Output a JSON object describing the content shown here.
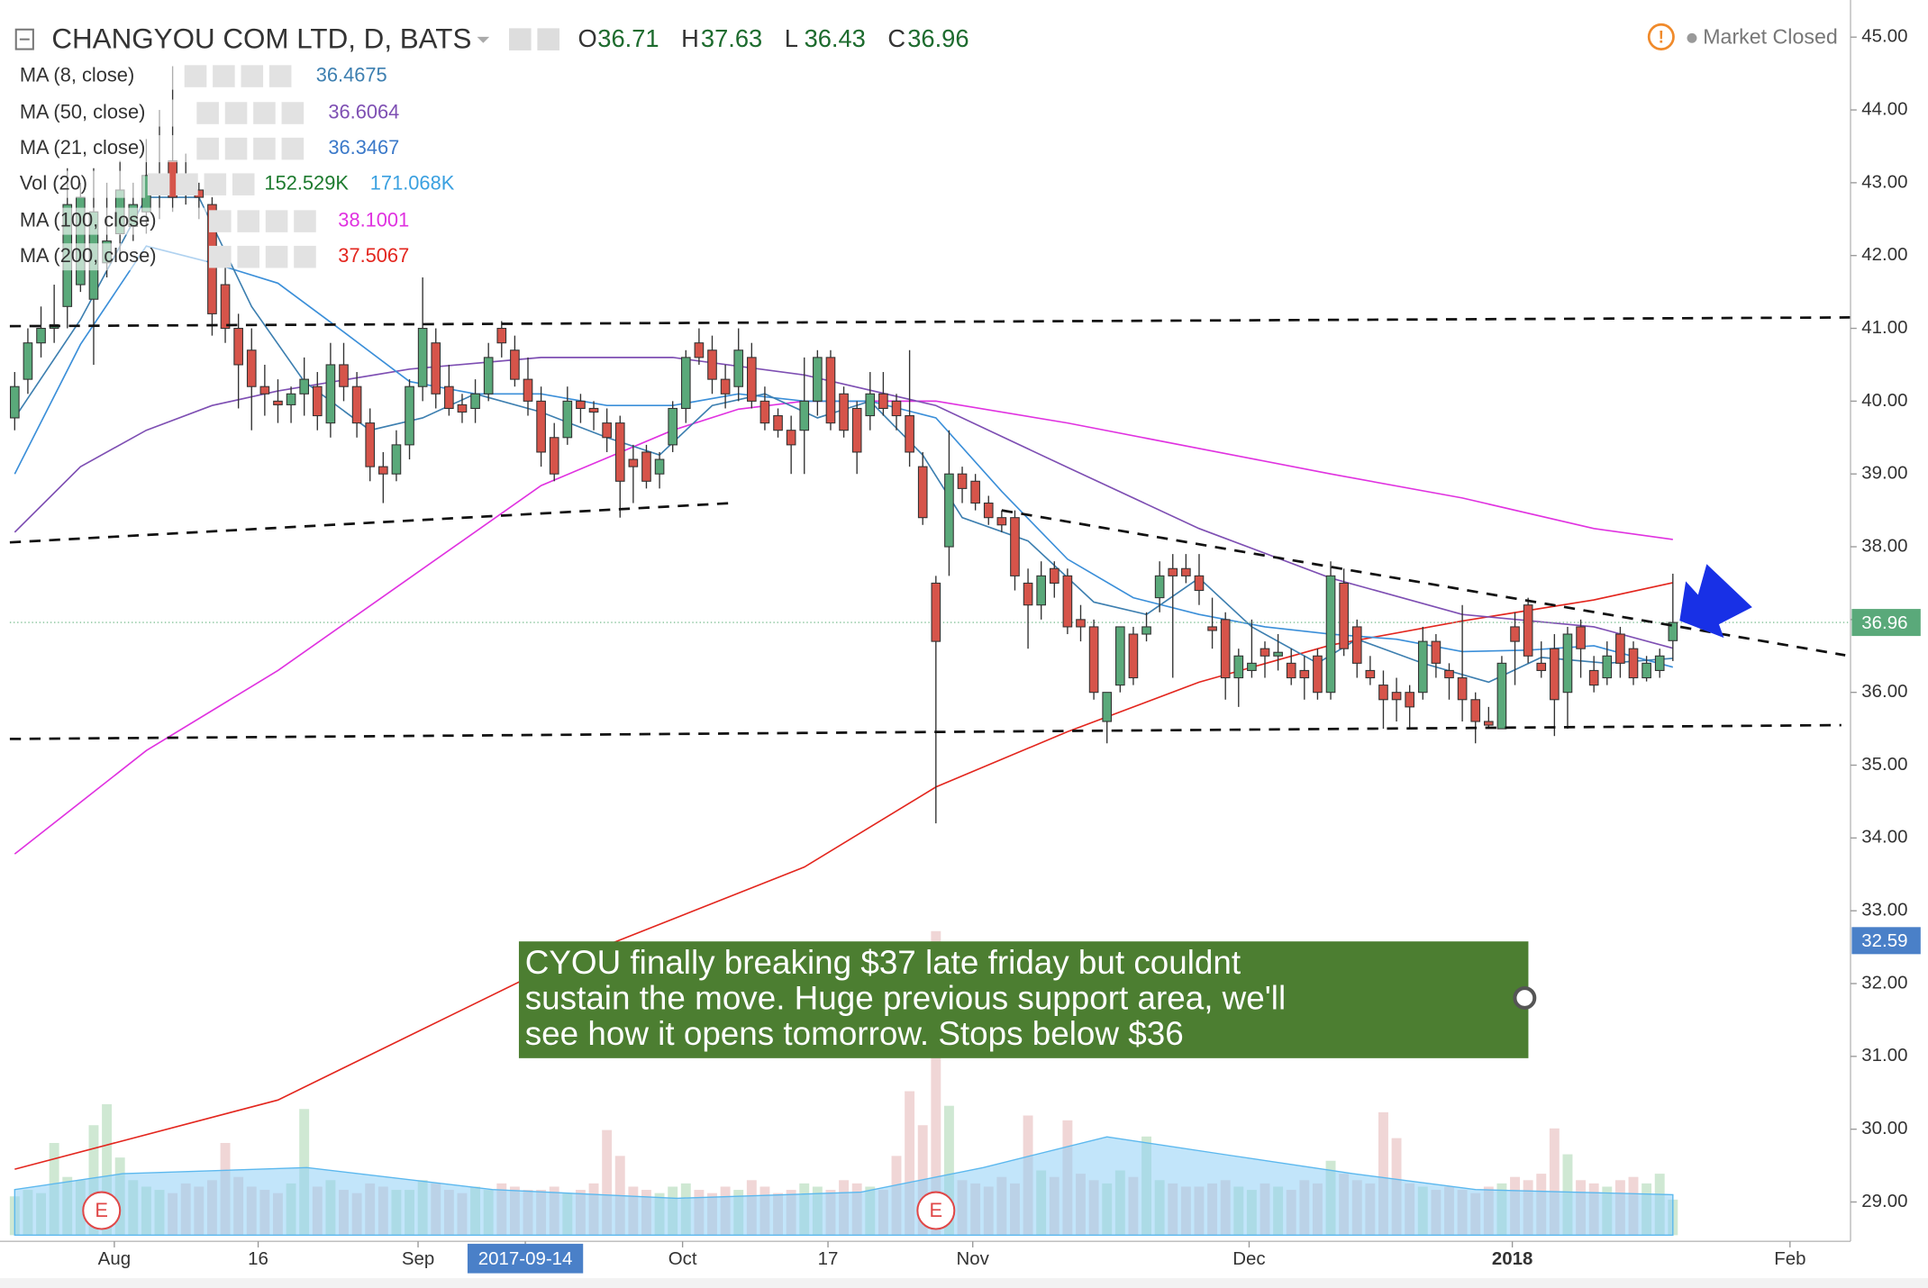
{
  "header": {
    "title": "CHANGYOU COM LTD, D, BATS",
    "ohlc": [
      {
        "label": "O",
        "value": 36.71
      },
      {
        "label": "H",
        "value": 37.63
      },
      {
        "label": "L",
        "value": 36.43
      },
      {
        "label": "C",
        "value": 36.96
      }
    ],
    "status": "Market Closed"
  },
  "legend": [
    {
      "name": "MA (8, close)",
      "values": [
        36.4675
      ],
      "colors": [
        "#3d7fb0"
      ]
    },
    {
      "name": "MA (50, close)",
      "values": [
        36.6064
      ],
      "colors": [
        "#7e4fb3"
      ]
    },
    {
      "name": "MA (21, close)",
      "values": [
        36.3467
      ],
      "colors": [
        "#3b79c9"
      ]
    },
    {
      "name": "Vol (20)",
      "values": [
        "152.529K",
        "171.068K"
      ],
      "colors": [
        "#1d7a2e",
        "#3aa0e0"
      ]
    },
    {
      "name": "MA (100, close)",
      "values": [
        38.1001
      ],
      "colors": [
        "#e032e0"
      ]
    },
    {
      "name": "MA (200, close)",
      "values": [
        37.5067
      ],
      "colors": [
        "#e3261e"
      ]
    }
  ],
  "chart_data": {
    "type": "candlestick",
    "up_color": "#5aa97a",
    "down_color": "#d6544a",
    "candles": [
      [
        39.77,
        40.4,
        39.6,
        40.2
      ],
      [
        40.3,
        41.0,
        40.1,
        40.8
      ],
      [
        40.8,
        41.3,
        40.6,
        41.0
      ],
      [
        41.0,
        41.6,
        40.8,
        41.05
      ],
      [
        41.3,
        43.2,
        41.0,
        42.7
      ],
      [
        41.6,
        43.0,
        41.5,
        42.8
      ],
      [
        41.4,
        43.2,
        40.5,
        42.6
      ],
      [
        41.9,
        43.0,
        41.7,
        42.2
      ],
      [
        42.3,
        43.3,
        42.0,
        42.9
      ],
      [
        42.4,
        43.0,
        42.2,
        42.7
      ],
      [
        42.6,
        43.6,
        42.3,
        43.1
      ],
      [
        42.9,
        44.0,
        42.5,
        43.0
      ],
      [
        43.3,
        44.6,
        42.6,
        42.8
      ],
      [
        43.0,
        43.4,
        42.7,
        42.9
      ],
      [
        42.9,
        43.0,
        42.5,
        42.8
      ],
      [
        42.7,
        42.8,
        40.9,
        41.2
      ],
      [
        41.6,
        41.9,
        40.8,
        41.0
      ],
      [
        41.0,
        41.2,
        39.9,
        40.5
      ],
      [
        40.7,
        41.0,
        39.6,
        40.2
      ],
      [
        40.2,
        40.5,
        39.8,
        40.1
      ],
      [
        40.0,
        40.3,
        39.7,
        39.95
      ],
      [
        39.95,
        40.2,
        39.7,
        40.1
      ],
      [
        40.1,
        40.6,
        39.8,
        40.3
      ],
      [
        40.2,
        40.4,
        39.6,
        39.8
      ],
      [
        39.7,
        40.8,
        39.5,
        40.5
      ],
      [
        40.5,
        40.8,
        40.0,
        40.2
      ],
      [
        40.2,
        40.4,
        39.5,
        39.7
      ],
      [
        39.7,
        39.9,
        38.9,
        39.1
      ],
      [
        39.1,
        39.3,
        38.6,
        39.0
      ],
      [
        39.0,
        39.6,
        38.9,
        39.4
      ],
      [
        39.4,
        40.3,
        39.2,
        40.2
      ],
      [
        40.2,
        41.7,
        40.0,
        41.0
      ],
      [
        40.8,
        41.0,
        39.9,
        40.1
      ],
      [
        40.2,
        40.5,
        39.8,
        39.9
      ],
      [
        39.95,
        40.1,
        39.7,
        39.85
      ],
      [
        39.9,
        40.3,
        39.7,
        40.1
      ],
      [
        40.1,
        40.8,
        40.0,
        40.6
      ],
      [
        41.0,
        41.1,
        40.6,
        40.8
      ],
      [
        40.7,
        40.9,
        40.2,
        40.3
      ],
      [
        40.3,
        40.6,
        39.8,
        40.0
      ],
      [
        40.0,
        40.2,
        39.1,
        39.3
      ],
      [
        39.5,
        39.7,
        38.9,
        39.0
      ],
      [
        39.5,
        40.2,
        39.4,
        40.0
      ],
      [
        40.0,
        40.1,
        39.7,
        39.9
      ],
      [
        39.9,
        40.0,
        39.6,
        39.85
      ],
      [
        39.7,
        39.9,
        39.3,
        39.5
      ],
      [
        39.7,
        39.8,
        38.4,
        38.9
      ],
      [
        39.2,
        39.4,
        38.6,
        39.1
      ],
      [
        39.3,
        39.4,
        38.8,
        38.9
      ],
      [
        39.0,
        39.3,
        38.8,
        39.2
      ],
      [
        39.4,
        40.0,
        39.3,
        39.9
      ],
      [
        39.9,
        40.7,
        39.7,
        40.6
      ],
      [
        40.8,
        41.0,
        40.5,
        40.6
      ],
      [
        40.7,
        40.9,
        40.1,
        40.3
      ],
      [
        40.3,
        40.5,
        39.9,
        40.1
      ],
      [
        40.2,
        41.0,
        40.0,
        40.7
      ],
      [
        40.6,
        40.8,
        39.9,
        40.0
      ],
      [
        40.0,
        40.2,
        39.6,
        39.7
      ],
      [
        39.8,
        39.9,
        39.5,
        39.6
      ],
      [
        39.6,
        39.8,
        39.0,
        39.4
      ],
      [
        39.6,
        40.6,
        39.0,
        40.0
      ],
      [
        40.0,
        40.7,
        39.8,
        40.6
      ],
      [
        40.6,
        40.7,
        39.6,
        39.7
      ],
      [
        40.1,
        40.2,
        39.5,
        39.6
      ],
      [
        39.9,
        40.0,
        39.0,
        39.3
      ],
      [
        39.8,
        40.4,
        39.6,
        40.1
      ],
      [
        40.1,
        40.4,
        39.8,
        39.9
      ],
      [
        40.0,
        40.1,
        39.6,
        39.8
      ],
      [
        39.8,
        40.7,
        39.1,
        39.3
      ],
      [
        39.1,
        39.3,
        38.3,
        38.4
      ],
      [
        37.5,
        37.6,
        34.2,
        36.7
      ],
      [
        38.0,
        39.6,
        37.6,
        39.0
      ],
      [
        39.0,
        39.1,
        38.6,
        38.8
      ],
      [
        38.9,
        39.0,
        38.5,
        38.6
      ],
      [
        38.6,
        38.7,
        38.3,
        38.4
      ],
      [
        38.4,
        38.5,
        38.2,
        38.3
      ],
      [
        38.4,
        38.5,
        37.4,
        37.6
      ],
      [
        37.5,
        37.7,
        36.6,
        37.2
      ],
      [
        37.2,
        37.8,
        37.0,
        37.6
      ],
      [
        37.7,
        37.8,
        37.3,
        37.5
      ],
      [
        37.6,
        37.7,
        36.8,
        36.9
      ],
      [
        37.0,
        37.2,
        36.7,
        36.9
      ],
      [
        36.9,
        37.0,
        35.9,
        36.0
      ],
      [
        35.6,
        36.0,
        35.3,
        36.0
      ],
      [
        36.1,
        36.9,
        36.0,
        36.9
      ],
      [
        36.8,
        36.9,
        36.1,
        36.2
      ],
      [
        36.8,
        37.1,
        36.7,
        36.9
      ],
      [
        37.3,
        37.8,
        37.1,
        37.6
      ],
      [
        37.7,
        37.9,
        36.2,
        37.6
      ],
      [
        37.7,
        37.9,
        37.5,
        37.6
      ],
      [
        37.6,
        37.9,
        37.2,
        37.4
      ],
      [
        36.9,
        37.3,
        36.6,
        36.85
      ],
      [
        37.0,
        37.1,
        35.9,
        36.2
      ],
      [
        36.2,
        36.6,
        35.8,
        36.5
      ],
      [
        36.3,
        37.0,
        36.2,
        36.4
      ],
      [
        36.6,
        36.7,
        36.2,
        36.5
      ],
      [
        36.5,
        36.8,
        36.3,
        36.55
      ],
      [
        36.4,
        36.6,
        36.1,
        36.2
      ],
      [
        36.3,
        36.5,
        35.9,
        36.2
      ],
      [
        36.5,
        36.6,
        35.9,
        36.0
      ],
      [
        36.0,
        37.8,
        35.9,
        37.6
      ],
      [
        37.5,
        37.7,
        36.5,
        36.6
      ],
      [
        36.9,
        37.0,
        36.2,
        36.4
      ],
      [
        36.3,
        36.5,
        36.1,
        36.2
      ],
      [
        36.1,
        36.3,
        35.5,
        35.9
      ],
      [
        36.0,
        36.2,
        35.6,
        35.9
      ],
      [
        36.0,
        36.1,
        35.5,
        35.8
      ],
      [
        36.0,
        36.9,
        35.9,
        36.7
      ],
      [
        36.7,
        36.8,
        36.2,
        36.4
      ],
      [
        36.3,
        36.4,
        35.9,
        36.2
      ],
      [
        36.2,
        37.2,
        35.6,
        35.9
      ],
      [
        35.9,
        36.0,
        35.3,
        35.6
      ],
      [
        35.6,
        35.8,
        35.5,
        35.55
      ],
      [
        35.5,
        36.5,
        35.5,
        36.4
      ],
      [
        36.9,
        37.1,
        36.1,
        36.7
      ],
      [
        37.2,
        37.3,
        36.4,
        36.5
      ],
      [
        36.4,
        36.7,
        36.2,
        36.3
      ],
      [
        36.6,
        36.8,
        35.4,
        35.9
      ],
      [
        36.0,
        36.9,
        35.5,
        36.8
      ],
      [
        36.9,
        37.0,
        36.2,
        36.6
      ],
      [
        36.3,
        36.5,
        36.0,
        36.1
      ],
      [
        36.2,
        36.7,
        36.1,
        36.5
      ],
      [
        36.8,
        36.9,
        36.2,
        36.4
      ],
      [
        36.6,
        36.7,
        36.1,
        36.2
      ],
      [
        36.2,
        36.5,
        36.15,
        36.4
      ],
      [
        36.3,
        36.6,
        36.2,
        36.5
      ],
      [
        36.71,
        37.63,
        36.43,
        36.96
      ]
    ],
    "volume": [
      120,
      140,
      130,
      285,
      180,
      170,
      340,
      405,
      240,
      170,
      150,
      140,
      130,
      160,
      150,
      170,
      285,
      180,
      150,
      140,
      130,
      160,
      390,
      150,
      170,
      140,
      130,
      160,
      150,
      140,
      140,
      170,
      160,
      140,
      130,
      150,
      140,
      160,
      150,
      140,
      140,
      150,
      130,
      140,
      160,
      325,
      245,
      150,
      140,
      130,
      150,
      160,
      140,
      130,
      150,
      140,
      170,
      150,
      130,
      140,
      160,
      150,
      140,
      170,
      160,
      150,
      140,
      245,
      445,
      340,
      940,
      400,
      170,
      160,
      150,
      180,
      160,
      370,
      200,
      180,
      355,
      190,
      170,
      160,
      200,
      180,
      305,
      170,
      160,
      150,
      150,
      160,
      170,
      150,
      140,
      160,
      150,
      140,
      170,
      160,
      230,
      190,
      170,
      160,
      380,
      300,
      160,
      150,
      140,
      150,
      140,
      130,
      150,
      160,
      180,
      170,
      190,
      330,
      250,
      170,
      160,
      150,
      170,
      180,
      160,
      190,
      110
    ],
    "vlim": [
      0,
      950
    ],
    "volume_ma": {
      "x": [
        0,
        8.2,
        22.2,
        36.3,
        50.3,
        64.3,
        73.6,
        83,
        92.3,
        101.7,
        111,
        126
      ],
      "values": [
        141,
        190,
        209,
        141,
        114,
        133,
        209,
        304,
        247,
        190,
        141,
        125
      ],
      "color": "#8fd0f5"
    },
    "xlim": [
      -0.37,
      139.5
    ],
    "xticks": [
      {
        "value": 7.57,
        "label": "Aug"
      },
      {
        "value": 18.5,
        "label": "16"
      },
      {
        "value": 30.65,
        "label": "Sep"
      },
      {
        "value": 38.8,
        "label": "2017-09-14",
        "highlight": true
      },
      {
        "value": 50.75,
        "label": "Oct"
      },
      {
        "value": 61.8,
        "label": "17"
      },
      {
        "value": 72.8,
        "label": "Nov"
      },
      {
        "value": 93.8,
        "label": "Dec"
      },
      {
        "value": 113.8,
        "label": "2018",
        "bold": true
      },
      {
        "value": 134.9,
        "label": "Feb"
      }
    ],
    "ylim": [
      28.46,
      45.51
    ],
    "yticks": [
      {
        "value": 29,
        "label": "29.00"
      },
      {
        "value": 30,
        "label": "30.00"
      },
      {
        "value": 31,
        "label": "31.00"
      },
      {
        "value": 32,
        "label": "32.00"
      },
      {
        "value": 33,
        "label": "33.00"
      },
      {
        "value": 34,
        "label": "34.00"
      },
      {
        "value": 35,
        "label": "35.00"
      },
      {
        "value": 36,
        "label": "36.00"
      },
      {
        "value": 37,
        "label": "37.00"
      },
      {
        "value": 38,
        "label": "38.00"
      },
      {
        "value": 39,
        "label": "39.00"
      },
      {
        "value": 40,
        "label": "40.00"
      },
      {
        "value": 41,
        "label": "41.00"
      },
      {
        "value": 42,
        "label": "42.00"
      },
      {
        "value": 43,
        "label": "43.00"
      },
      {
        "value": 44,
        "label": "44.00"
      },
      {
        "value": 45,
        "label": "45.00"
      }
    ],
    "ma_lines": [
      {
        "name": "MA (200, close)",
        "color": "#e3261e",
        "x": [
          0,
          20,
          40,
          60,
          70,
          80,
          90,
          100,
          110,
          120,
          126
        ],
        "values": [
          29.45,
          30.4,
          32.17,
          33.6,
          34.7,
          35.46,
          36.14,
          36.65,
          36.98,
          37.27,
          37.5067
        ]
      },
      {
        "name": "MA (100, close)",
        "color": "#e032e0",
        "x": [
          0,
          10,
          20,
          30,
          40,
          50,
          55,
          60,
          70,
          80,
          90,
          100,
          110,
          120,
          126
        ],
        "values": [
          33.78,
          35.2,
          36.3,
          37.57,
          38.84,
          39.6,
          39.89,
          40.0,
          40.0,
          39.7,
          39.35,
          39.0,
          38.67,
          38.25,
          38.1001
        ]
      },
      {
        "name": "MA (50, close)",
        "color": "#7e4fb3",
        "x": [
          0,
          5,
          10,
          15,
          20,
          30,
          40,
          50,
          60,
          70,
          80,
          90,
          100,
          110,
          120,
          126
        ],
        "values": [
          38.2,
          39.1,
          39.6,
          39.94,
          40.14,
          40.44,
          40.6,
          40.6,
          40.36,
          39.94,
          39.09,
          38.25,
          37.57,
          37.07,
          36.9,
          36.6064
        ]
      },
      {
        "name": "MA (21, close)",
        "color": "#3b8fd9",
        "x": [
          0,
          5,
          10,
          15,
          20,
          25,
          30,
          35,
          40,
          45,
          50,
          55,
          60,
          65,
          70,
          75,
          80,
          85,
          90,
          95,
          100,
          105,
          110,
          115,
          120,
          126
        ],
        "values": [
          39.0,
          40.78,
          42.13,
          41.9,
          41.62,
          40.95,
          40.27,
          40.1,
          40.1,
          39.94,
          39.94,
          40.1,
          40.0,
          40.0,
          39.77,
          38.76,
          37.83,
          37.3,
          37.07,
          36.9,
          36.8,
          36.73,
          36.56,
          36.58,
          36.64,
          36.3467
        ]
      },
      {
        "name": "MA (8, close)",
        "color": "#3d7fb0",
        "x": [
          0,
          5,
          10,
          14,
          18,
          22,
          27,
          31,
          35,
          40,
          45,
          49,
          53,
          57,
          61,
          65,
          69,
          72,
          77,
          82,
          86,
          90,
          94,
          99,
          102,
          107,
          112,
          116,
          121,
          126
        ],
        "values": [
          39.77,
          41.12,
          42.8,
          42.8,
          41.3,
          40.27,
          39.6,
          39.77,
          40.1,
          39.85,
          39.5,
          39.26,
          39.94,
          40.1,
          39.77,
          40.0,
          39.26,
          38.4,
          38.08,
          37.24,
          37.07,
          37.57,
          36.9,
          36.4,
          36.73,
          36.4,
          36.14,
          36.48,
          36.4,
          36.4675
        ]
      }
    ],
    "trendlines": [
      {
        "x": [
          -0.37,
          139.5
        ],
        "values": [
          41.03,
          41.15
        ]
      },
      {
        "x": [
          -0.37,
          54.5
        ],
        "values": [
          38.06,
          38.6
        ]
      },
      {
        "x": [
          -0.37,
          138.8
        ],
        "values": [
          35.36,
          35.55
        ]
      },
      {
        "x": [
          75.0,
          139.1
        ],
        "values": [
          38.5,
          36.51
        ]
      }
    ],
    "events": [
      {
        "label": "E",
        "x": 6.6
      },
      {
        "label": "E",
        "x": 70
      }
    ],
    "price_labels": [
      {
        "value": 36.96,
        "color": "#5aa97a"
      },
      {
        "value": 32.59,
        "color": "#4a80c8"
      }
    ],
    "annotation": [
      "CYOU finally breaking $37 late friday but couldnt",
      "sustain the move. Huge previous support area, we'll",
      "see how it opens tomorrow. Stops below $36"
    ]
  }
}
